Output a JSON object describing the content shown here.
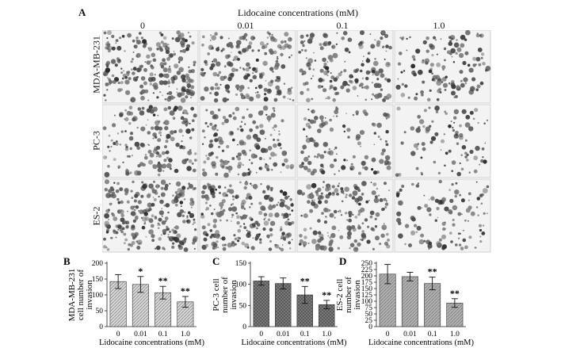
{
  "figure": {
    "panel_a_letter": "A",
    "top_title": "Lidocaine concentrations (mM)",
    "columns": [
      "0",
      "0.01",
      "0.1",
      "1.0"
    ],
    "rows": [
      "MDA-MB-231",
      "PC-3",
      "ES-2"
    ]
  },
  "chart_data": [
    {
      "type": "bar",
      "panel": "B",
      "categories": [
        "0",
        "0.01",
        "0.1",
        "1.0"
      ],
      "values": [
        142,
        133,
        107,
        78
      ],
      "errors": [
        22,
        25,
        20,
        17
      ],
      "significance": [
        "",
        "*",
        "**",
        "**"
      ],
      "ylim": [
        0,
        200
      ],
      "yticks": [
        0,
        50,
        100,
        150,
        200
      ],
      "ylabel": [
        "MDA-MB-231",
        "cell number of",
        "invasion"
      ],
      "xlabel": "Lidocaine concentrations (mM)",
      "fill_pattern": "hatch",
      "bar_color": "#d6d6d6"
    },
    {
      "type": "bar",
      "panel": "C",
      "categories": [
        "0",
        "0.01",
        "0.1",
        "1.0"
      ],
      "values": [
        108,
        102,
        75,
        52
      ],
      "errors": [
        10,
        13,
        20,
        10
      ],
      "significance": [
        "",
        "",
        "**",
        "**"
      ],
      "ylim": [
        0,
        150
      ],
      "yticks": [
        0,
        50,
        100,
        150
      ],
      "ylabel": [
        "PC-3 cell",
        "number of",
        "invasion"
      ],
      "xlabel": "Lidocaine concentrations (mM)",
      "fill_pattern": "checker",
      "bar_color": "#7a7a7a"
    },
    {
      "type": "bar",
      "panel": "D",
      "categories": [
        "0",
        "0.01",
        "0.1",
        "1.0"
      ],
      "values": [
        207,
        197,
        170,
        93
      ],
      "errors": [
        38,
        17,
        25,
        17
      ],
      "significance": [
        "",
        "",
        "**",
        "**"
      ],
      "ylim": [
        0,
        250
      ],
      "yticks": [
        0,
        25,
        50,
        75,
        100,
        125,
        150,
        175,
        200,
        225,
        250
      ],
      "ylabel": [
        "ES-2 cell",
        "number of",
        "invasion"
      ],
      "xlabel": "Lidocaine concentrations (mM)",
      "fill_pattern": "hatch",
      "bar_color": "#b0b0b0"
    }
  ]
}
